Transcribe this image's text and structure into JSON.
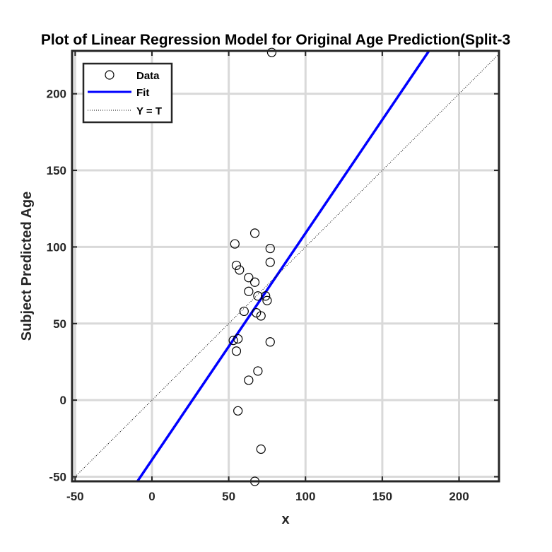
{
  "chart_data": {
    "type": "scatter",
    "title": "Plot of Linear Regression Model for Original Age Prediction(Split-3",
    "xlabel": "x",
    "ylabel": "Subject Predicted Age",
    "xlim": [
      -52,
      226
    ],
    "ylim": [
      -53,
      228
    ],
    "xticks": [
      -50,
      0,
      50,
      100,
      150,
      200
    ],
    "yticks": [
      -50,
      0,
      50,
      100,
      150,
      200
    ],
    "grid": true,
    "legend_position": "top-left",
    "series": [
      {
        "name": "Data",
        "kind": "markers",
        "marker": "open-circle",
        "color": "#000000",
        "points": [
          [
            78,
            227
          ],
          [
            67,
            109
          ],
          [
            54,
            102
          ],
          [
            77,
            99
          ],
          [
            77,
            90
          ],
          [
            55,
            88
          ],
          [
            57,
            85
          ],
          [
            63,
            80
          ],
          [
            67,
            77
          ],
          [
            63,
            71
          ],
          [
            69,
            68
          ],
          [
            74,
            68
          ],
          [
            75,
            65
          ],
          [
            60,
            58
          ],
          [
            68,
            57
          ],
          [
            71,
            55
          ],
          [
            56,
            40
          ],
          [
            53,
            39
          ],
          [
            77,
            38
          ],
          [
            55,
            32
          ],
          [
            69,
            19
          ],
          [
            63,
            13
          ],
          [
            56,
            -7
          ],
          [
            71,
            -32
          ],
          [
            67,
            -53
          ]
        ]
      },
      {
        "name": "Fit",
        "kind": "line",
        "color": "#0000ff",
        "slope": 1.48,
        "intercept": -39
      },
      {
        "name": "Y = T",
        "kind": "dotted-line",
        "color": "#000000",
        "slope": 1,
        "intercept": 0
      }
    ]
  }
}
